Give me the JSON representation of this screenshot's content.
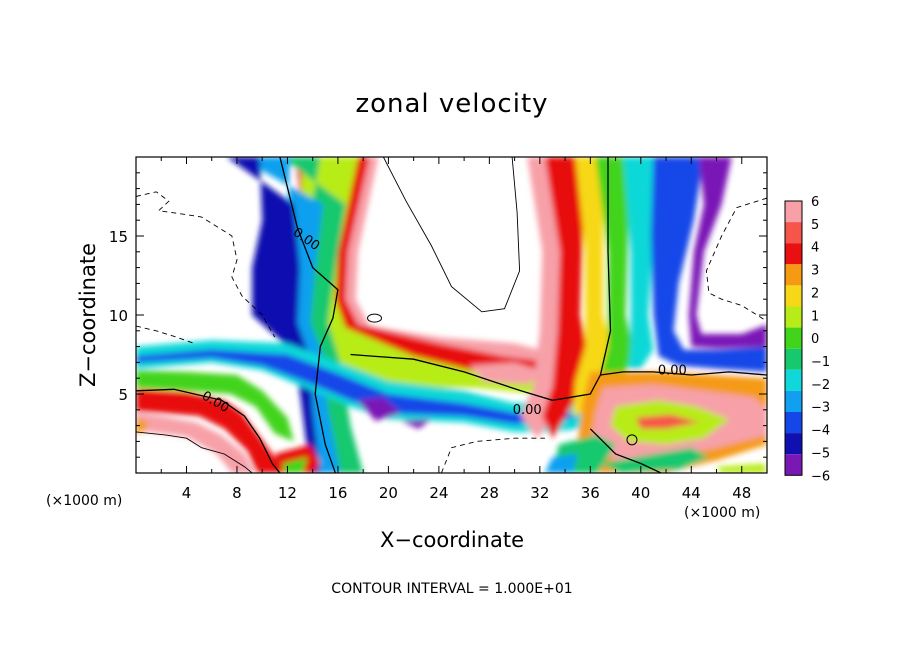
{
  "chart_data": {
    "type": "heatmap",
    "title": "zonal velocity",
    "xlabel": "X−coordinate",
    "ylabel": "Z−coordinate",
    "x_unit": "(×1000 m)",
    "y_unit": "(×1000 m)",
    "xlim": [
      0,
      50
    ],
    "ylim": [
      0,
      20
    ],
    "x_ticks": [
      4,
      8,
      12,
      16,
      20,
      24,
      28,
      32,
      36,
      40,
      44,
      48
    ],
    "y_ticks": [
      5,
      10,
      15
    ],
    "contour_labels": [
      {
        "text": "0.00",
        "x": 13.5,
        "z": 14.8
      },
      {
        "text": "0.00",
        "x": 6.3,
        "z": 4.5
      },
      {
        "text": "0.00",
        "x": 31,
        "z": 4.0
      },
      {
        "text": "0.00",
        "x": 42.5,
        "z": 6.5
      }
    ],
    "colorbar": {
      "levels": [
        6,
        5,
        4,
        3,
        2,
        1,
        0,
        -1,
        -2,
        -3,
        -4,
        -5,
        -6
      ],
      "labels": [
        "6",
        "5",
        "4",
        "3",
        "2",
        "1",
        "0",
        "−1",
        "−2",
        "−3",
        "−4",
        "−5",
        "−6"
      ],
      "colors": [
        "#f7a0a8",
        "#f6564a",
        "#e81010",
        "#f59a12",
        "#f7d818",
        "#b8ec18",
        "#42d41a",
        "#16c86e",
        "#10d8d8",
        "#10a0ef",
        "#1446e8",
        "#1010b0",
        "#7a18b6"
      ]
    },
    "footer": "CONTOUR INTERVAL = 1.000E+01"
  }
}
